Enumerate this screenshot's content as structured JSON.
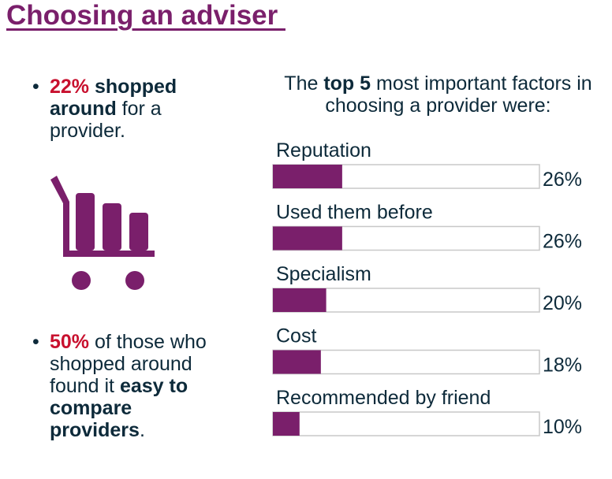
{
  "title": "Choosing an adviser ",
  "bullets": [
    {
      "highlight": "22%",
      "bold": " shopped around",
      "rest": " for a provider."
    },
    {
      "highlight": "50%",
      "text": " of those who shopped around found it ",
      "bold": "easy to compare providers",
      "end": "."
    }
  ],
  "chart_heading": {
    "pre": "The ",
    "bold": "top 5",
    "post": " most important factors in choosing a provider were:"
  },
  "icons": {
    "cart": "shopping-cart-icon"
  },
  "colors": {
    "accent": "#7a1f6b",
    "highlight": "#c8102e",
    "text": "#0d2a3a"
  },
  "chart_data": {
    "type": "bar",
    "orientation": "horizontal",
    "categories": [
      "Reputation",
      "Used them before",
      "Specialism",
      "Cost",
      "Recommended by friend"
    ],
    "values": [
      26,
      26,
      20,
      18,
      10
    ],
    "value_labels": [
      "26%",
      "26%",
      "20%",
      "18%",
      "10%"
    ],
    "xlim": [
      0,
      100
    ],
    "unit": "%",
    "bar_color": "#7a1f6b"
  }
}
